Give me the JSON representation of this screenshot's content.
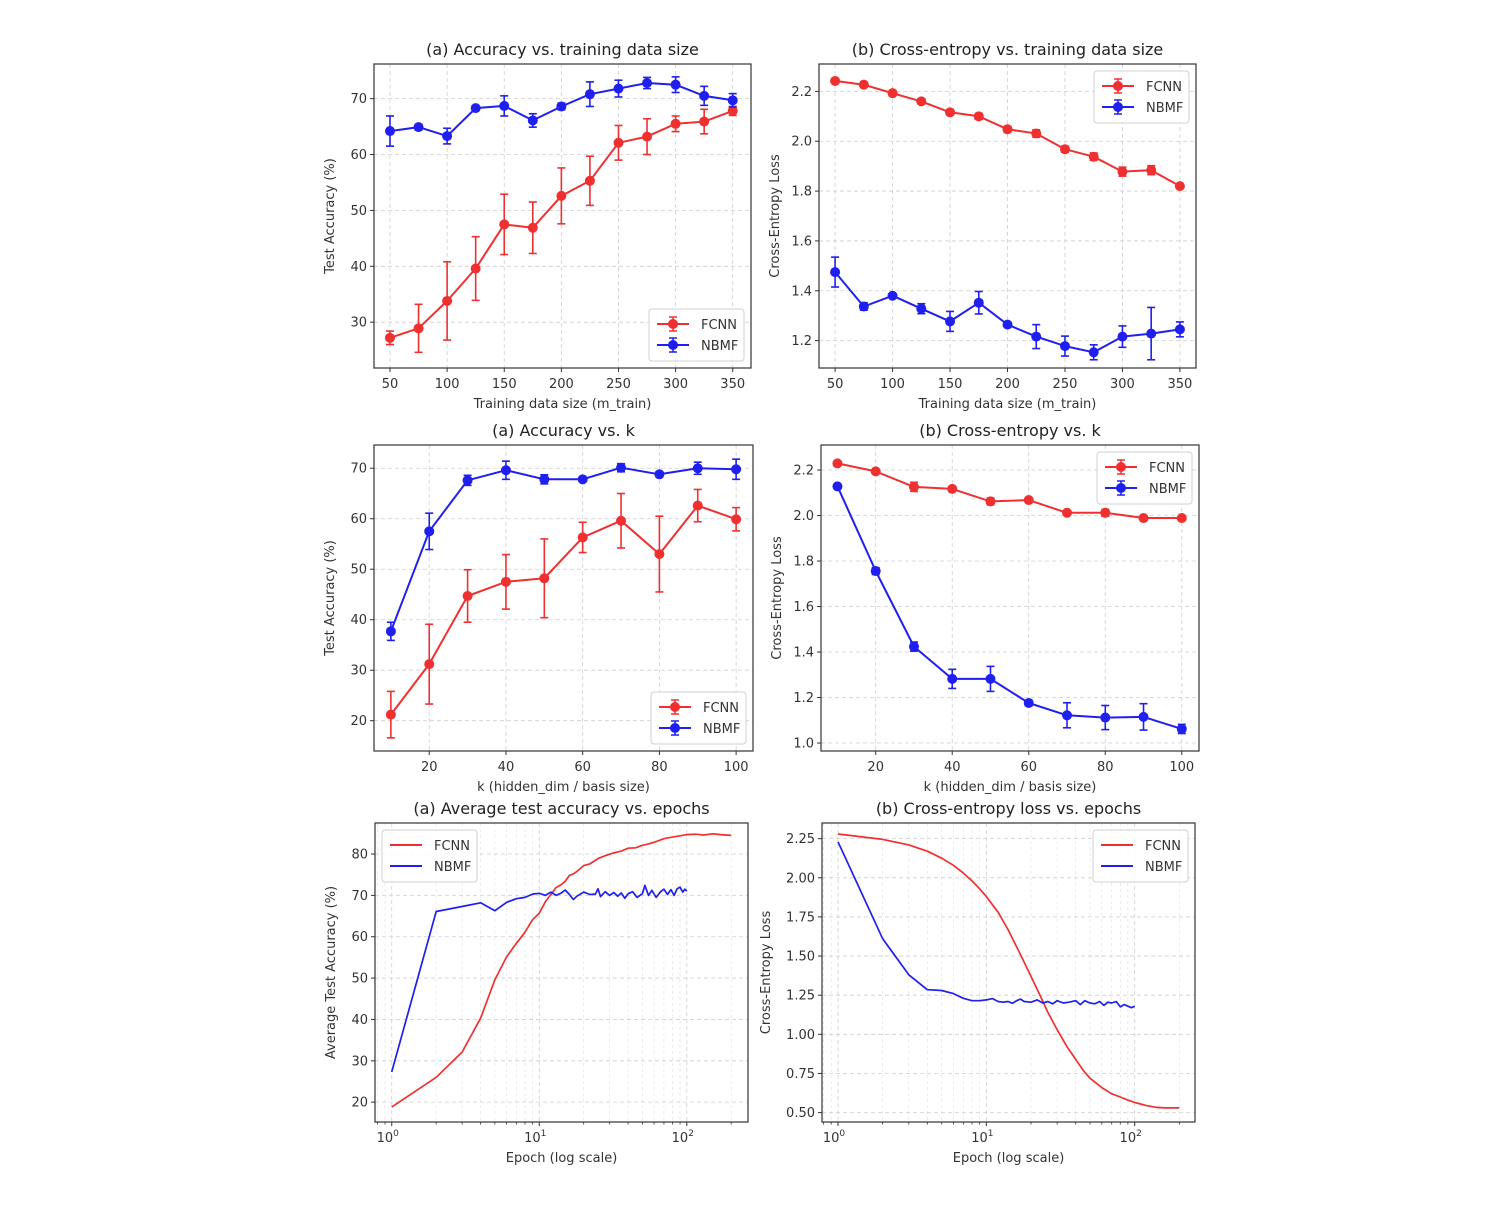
{
  "colors": {
    "fcnn": "#f03030",
    "nbmf": "#1f1fef"
  },
  "chart_data": [
    {
      "id": "acc-vs-mtrain",
      "type": "line",
      "title": "(a) Accuracy vs. training data size",
      "xlabel": "Training data size (m_train)",
      "ylabel": "Test Accuracy (%)",
      "xscale": "linear",
      "xlim": [
        36,
        366
      ],
      "ylim": [
        21.8,
        76.2
      ],
      "xticks": [
        50,
        100,
        150,
        200,
        250,
        300,
        350
      ],
      "yticks": [
        30,
        40,
        50,
        60,
        70
      ],
      "grid": true,
      "legend": "bottom-right",
      "markers": true,
      "x": [
        50,
        75,
        100,
        125,
        150,
        175,
        200,
        225,
        250,
        275,
        300,
        325,
        350
      ],
      "series": [
        {
          "name": "FCNN",
          "color_key": "fcnn",
          "values": [
            27.2,
            28.9,
            33.8,
            39.6,
            47.5,
            46.9,
            52.6,
            55.3,
            62.1,
            63.2,
            65.5,
            65.9,
            67.8
          ],
          "errors": [
            1.2,
            4.3,
            7.0,
            5.7,
            5.4,
            4.6,
            5.0,
            4.4,
            3.1,
            3.2,
            1.4,
            2.2,
            0.8
          ]
        },
        {
          "name": "NBMF",
          "color_key": "nbmf",
          "values": [
            64.2,
            64.9,
            63.3,
            68.3,
            68.7,
            66.1,
            68.6,
            70.8,
            71.8,
            72.8,
            72.5,
            70.5,
            69.7
          ],
          "errors": [
            2.7,
            0.5,
            1.4,
            0.4,
            1.8,
            1.2,
            0.6,
            2.2,
            1.5,
            1.0,
            1.4,
            1.7,
            1.2
          ]
        }
      ]
    },
    {
      "id": "ce-vs-mtrain",
      "type": "line",
      "title": "(b) Cross-entropy vs. training data size",
      "xlabel": "Training data size (m_train)",
      "ylabel": "Cross-Entropy Loss",
      "xscale": "linear",
      "xlim": [
        36,
        364
      ],
      "ylim": [
        1.09,
        2.31
      ],
      "xticks": [
        50,
        100,
        150,
        200,
        250,
        300,
        350
      ],
      "yticks": [
        1.2,
        1.4,
        1.6,
        1.8,
        2.0,
        2.2
      ],
      "ytick_format": 1,
      "grid": true,
      "legend": "top-right",
      "markers": true,
      "x": [
        50,
        75,
        100,
        125,
        150,
        175,
        200,
        225,
        250,
        275,
        300,
        325,
        350
      ],
      "series": [
        {
          "name": "FCNN",
          "color_key": "fcnn",
          "values": [
            2.242,
            2.227,
            2.193,
            2.16,
            2.116,
            2.1,
            2.048,
            2.031,
            1.968,
            1.938,
            1.878,
            1.884,
            1.82
          ],
          "errors": [
            0.008,
            0.008,
            0.01,
            0.01,
            0.01,
            0.012,
            0.012,
            0.015,
            0.012,
            0.015,
            0.018,
            0.018,
            0.008
          ]
        },
        {
          "name": "NBMF",
          "color_key": "nbmf",
          "values": [
            1.475,
            1.337,
            1.38,
            1.328,
            1.277,
            1.352,
            1.264,
            1.216,
            1.178,
            1.153,
            1.216,
            1.228,
            1.245
          ],
          "errors": [
            0.06,
            0.015,
            0.008,
            0.02,
            0.04,
            0.045,
            0.01,
            0.048,
            0.04,
            0.03,
            0.043,
            0.105,
            0.03
          ]
        }
      ]
    },
    {
      "id": "acc-vs-k",
      "type": "line",
      "title": "(a) Accuracy vs. k",
      "xlabel": "k (hidden_dim / basis size)",
      "ylabel": "Test Accuracy (%)",
      "xscale": "linear",
      "xlim": [
        5.6,
        104.4
      ],
      "ylim": [
        14.0,
        74.6
      ],
      "xticks": [
        20,
        40,
        60,
        80,
        100
      ],
      "yticks": [
        20,
        30,
        40,
        50,
        60,
        70
      ],
      "grid": true,
      "legend": "bottom-right",
      "markers": true,
      "x": [
        10,
        20,
        30,
        40,
        50,
        60,
        70,
        80,
        90,
        100
      ],
      "series": [
        {
          "name": "FCNN",
          "color_key": "fcnn",
          "values": [
            21.2,
            31.2,
            44.7,
            47.5,
            48.2,
            56.3,
            59.6,
            53.0,
            62.6,
            59.9
          ],
          "errors": [
            4.6,
            7.9,
            5.2,
            5.4,
            7.8,
            3.0,
            5.4,
            7.5,
            3.2,
            2.3
          ]
        },
        {
          "name": "NBMF",
          "color_key": "nbmf",
          "values": [
            37.7,
            57.5,
            67.6,
            69.6,
            67.8,
            67.8,
            70.1,
            68.8,
            70.0,
            69.8
          ],
          "errors": [
            1.8,
            3.6,
            1.0,
            1.8,
            0.9,
            0.4,
            0.8,
            0.5,
            1.2,
            2.0
          ]
        }
      ]
    },
    {
      "id": "ce-vs-k",
      "type": "line",
      "title": "(b) Cross-entropy vs. k",
      "xlabel": "k (hidden_dim / basis size)",
      "ylabel": "Cross-Entropy Loss",
      "xscale": "linear",
      "xlim": [
        5.7,
        104.5
      ],
      "ylim": [
        0.965,
        2.31
      ],
      "xticks": [
        20,
        40,
        60,
        80,
        100
      ],
      "yticks": [
        1.0,
        1.2,
        1.4,
        1.6,
        1.8,
        2.0,
        2.2
      ],
      "ytick_format": 1,
      "grid": true,
      "legend": "top-right",
      "markers": true,
      "x": [
        10,
        20,
        30,
        40,
        50,
        60,
        70,
        80,
        90,
        100
      ],
      "series": [
        {
          "name": "FCNN",
          "color_key": "fcnn",
          "values": [
            2.229,
            2.194,
            2.126,
            2.117,
            2.062,
            2.068,
            2.012,
            2.012,
            1.989,
            1.989
          ],
          "errors": [
            0.01,
            0.008,
            0.02,
            0.01,
            0.015,
            0.008,
            0.008,
            0.015,
            0.008,
            0.008
          ]
        },
        {
          "name": "NBMF",
          "color_key": "nbmf",
          "values": [
            2.128,
            1.756,
            1.424,
            1.282,
            1.282,
            1.176,
            1.122,
            1.112,
            1.115,
            1.062
          ],
          "errors": [
            0.008,
            0.015,
            0.02,
            0.042,
            0.055,
            0.012,
            0.055,
            0.053,
            0.058,
            0.02
          ]
        }
      ]
    },
    {
      "id": "acc-vs-epochs",
      "type": "line",
      "title": "(a) Average test accuracy vs. epochs",
      "xlabel": "Epoch (log scale)",
      "ylabel": "Average Test Accuracy (%)",
      "xscale": "log",
      "xlim": [
        0.77,
        260
      ],
      "ylim": [
        15.2,
        87.5
      ],
      "xticks": [
        1,
        10,
        100
      ],
      "xtick_labels": [
        "10^0",
        "10^1",
        "10^2"
      ],
      "yticks": [
        20,
        30,
        40,
        50,
        60,
        70,
        80
      ],
      "grid": true,
      "legend": "top-left",
      "markers": false,
      "series": [
        {
          "name": "FCNN",
          "color_key": "fcnn",
          "x": [
            1,
            2,
            3,
            4,
            5,
            6,
            7,
            8,
            9,
            10,
            11,
            12,
            13,
            14,
            15,
            16,
            17,
            18,
            20,
            22,
            25,
            28,
            32,
            36,
            40,
            45,
            50,
            56,
            63,
            70,
            80,
            90,
            100,
            115,
            130,
            150,
            170,
            200
          ],
          "values": [
            18.8,
            26.0,
            32.1,
            40.3,
            49.6,
            55.1,
            58.4,
            61.1,
            64.1,
            65.7,
            68.5,
            70.2,
            71.9,
            72.5,
            73.4,
            74.8,
            75.2,
            75.8,
            77.2,
            77.6,
            78.9,
            79.6,
            80.3,
            80.7,
            81.4,
            81.5,
            82.1,
            82.5,
            83.1,
            83.7,
            84.1,
            84.4,
            84.7,
            84.8,
            84.6,
            84.9,
            84.7,
            84.5
          ]
        },
        {
          "name": "NBMF",
          "color_key": "nbmf",
          "x": [
            1,
            2,
            3,
            4,
            5,
            6,
            7,
            8,
            9,
            10,
            11,
            12,
            13,
            14,
            15,
            16,
            17,
            18,
            20,
            22,
            24,
            25,
            26,
            28,
            30,
            32,
            34,
            36,
            38,
            40,
            43,
            46,
            50,
            52,
            55,
            58,
            62,
            66,
            70,
            74,
            78,
            82,
            86,
            90,
            94,
            97,
            100
          ],
          "values": [
            27.3,
            66.1,
            67.3,
            68.2,
            66.3,
            68.3,
            69.2,
            69.5,
            70.3,
            70.5,
            70.0,
            70.8,
            70.0,
            70.5,
            71.3,
            70.2,
            69.0,
            69.8,
            70.8,
            70.2,
            70.3,
            71.6,
            69.7,
            70.9,
            70.0,
            70.7,
            69.8,
            70.6,
            69.3,
            70.4,
            70.9,
            69.5,
            70.4,
            72.4,
            70.0,
            71.2,
            69.5,
            70.8,
            71.5,
            70.2,
            71.4,
            70.0,
            71.6,
            72.0,
            70.8,
            71.5,
            71.0
          ]
        }
      ]
    },
    {
      "id": "ce-vs-epochs",
      "type": "line",
      "title": "(b) Cross-entropy loss vs. epochs",
      "xlabel": "Epoch (log scale)",
      "ylabel": "Cross-Entropy Loss",
      "xscale": "log",
      "xlim": [
        0.78,
        255
      ],
      "ylim": [
        0.44,
        2.35
      ],
      "xticks": [
        1,
        10,
        100
      ],
      "xtick_labels": [
        "10^0",
        "10^1",
        "10^2"
      ],
      "yticks": [
        0.5,
        0.75,
        1.0,
        1.25,
        1.5,
        1.75,
        2.0,
        2.25
      ],
      "ytick_format": 2,
      "grid": true,
      "legend": "top-right",
      "markers": false,
      "series": [
        {
          "name": "FCNN",
          "color_key": "fcnn",
          "x": [
            1,
            1.5,
            2,
            3,
            4,
            5,
            6,
            7,
            8,
            9,
            10,
            12,
            14,
            16,
            18,
            20,
            23,
            26,
            30,
            35,
            40,
            45,
            50,
            60,
            70,
            80,
            90,
            100,
            120,
            140,
            160,
            200
          ],
          "values": [
            2.28,
            2.26,
            2.245,
            2.21,
            2.17,
            2.125,
            2.08,
            2.03,
            1.98,
            1.93,
            1.88,
            1.78,
            1.67,
            1.56,
            1.46,
            1.37,
            1.25,
            1.14,
            1.03,
            0.92,
            0.84,
            0.77,
            0.72,
            0.66,
            0.62,
            0.6,
            0.58,
            0.565,
            0.545,
            0.533,
            0.53,
            0.53
          ]
        },
        {
          "name": "NBMF",
          "color_key": "nbmf",
          "x": [
            1,
            2,
            3,
            4,
            5,
            6,
            7,
            8,
            9,
            10,
            11,
            12,
            13,
            14,
            15,
            16,
            17,
            18,
            20,
            22,
            24,
            26,
            28,
            30,
            33,
            36,
            40,
            43,
            46,
            50,
            54,
            58,
            62,
            66,
            70,
            75,
            80,
            85,
            90,
            95,
            100
          ],
          "values": [
            2.23,
            1.61,
            1.38,
            1.285,
            1.28,
            1.26,
            1.23,
            1.215,
            1.215,
            1.22,
            1.228,
            1.21,
            1.205,
            1.21,
            1.198,
            1.215,
            1.225,
            1.21,
            1.205,
            1.22,
            1.2,
            1.21,
            1.195,
            1.215,
            1.2,
            1.205,
            1.215,
            1.19,
            1.215,
            1.2,
            1.195,
            1.21,
            1.185,
            1.205,
            1.2,
            1.21,
            1.175,
            1.19,
            1.18,
            1.17,
            1.18
          ]
        }
      ]
    }
  ]
}
